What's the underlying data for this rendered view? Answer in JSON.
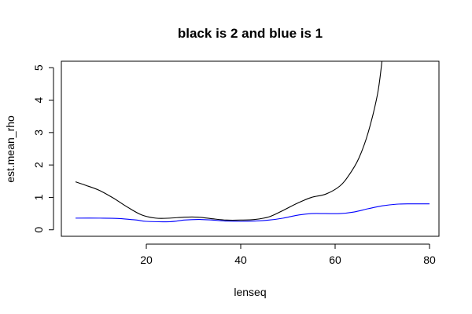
{
  "chart_data": {
    "type": "line",
    "title": "black is 2 and blue is 1",
    "xlabel": "lenseq",
    "ylabel": "est.mean_rho",
    "xlim": [
      2,
      82
    ],
    "ylim": [
      -0.2,
      5.2
    ],
    "x_ticks": [
      20,
      40,
      60,
      80
    ],
    "y_ticks": [
      0,
      1,
      2,
      3,
      4,
      5
    ],
    "grid": false,
    "series": [
      {
        "color": "#000000",
        "x": [
          5,
          7,
          10,
          13,
          16,
          19,
          22,
          25,
          28,
          31,
          34,
          37,
          40,
          43,
          46,
          49,
          52,
          55,
          58,
          61,
          63,
          65,
          67,
          69,
          70
        ],
        "y": [
          1.48,
          1.38,
          1.22,
          0.98,
          0.7,
          0.46,
          0.36,
          0.36,
          0.39,
          0.39,
          0.34,
          0.3,
          0.3,
          0.32,
          0.4,
          0.6,
          0.82,
          1.0,
          1.1,
          1.35,
          1.7,
          2.2,
          3.0,
          4.2,
          5.3
        ]
      },
      {
        "color": "#0000ff",
        "x": [
          5,
          10,
          14,
          18,
          20,
          25,
          28,
          31,
          34,
          37,
          40,
          43,
          46,
          49,
          52,
          55,
          58,
          61,
          64,
          67,
          70,
          73,
          76,
          80
        ],
        "y": [
          0.36,
          0.36,
          0.35,
          0.3,
          0.26,
          0.25,
          0.3,
          0.32,
          0.3,
          0.27,
          0.26,
          0.27,
          0.3,
          0.36,
          0.45,
          0.5,
          0.5,
          0.5,
          0.55,
          0.65,
          0.74,
          0.79,
          0.8,
          0.8
        ]
      }
    ]
  }
}
